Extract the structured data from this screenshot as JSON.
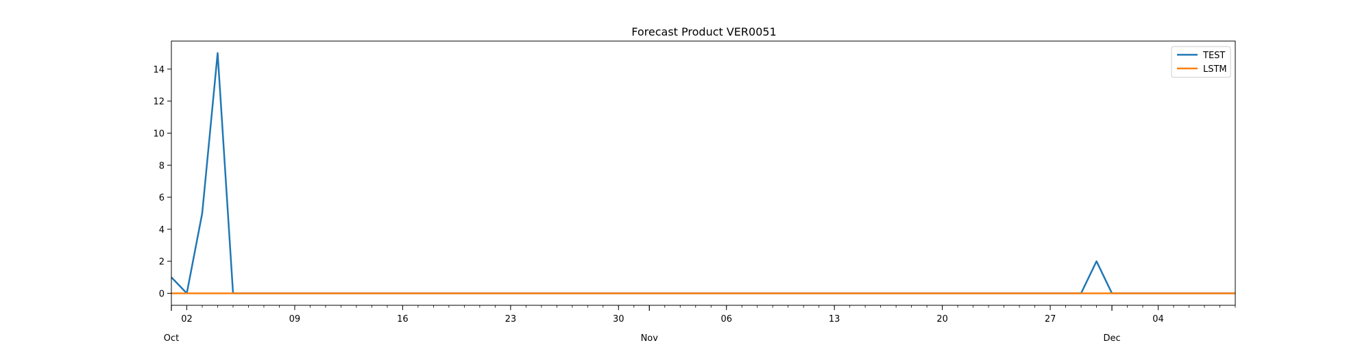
{
  "chart_data": {
    "type": "line",
    "title": "Forecast Product VER0051",
    "xlabel": "",
    "ylabel": "",
    "x_range": [
      "2022-10-01",
      "2022-12-09"
    ],
    "ylim": [
      -0.75,
      15.75
    ],
    "y_ticks": [
      0,
      2,
      4,
      6,
      8,
      10,
      12,
      14
    ],
    "x_tick_labels": [
      {
        "date": "2022-10-02",
        "label": "02"
      },
      {
        "date": "2022-10-09",
        "label": "09"
      },
      {
        "date": "2022-10-16",
        "label": "16"
      },
      {
        "date": "2022-10-23",
        "label": "23"
      },
      {
        "date": "2022-10-30",
        "label": "30"
      },
      {
        "date": "2022-11-06",
        "label": "06"
      },
      {
        "date": "2022-11-13",
        "label": "13"
      },
      {
        "date": "2022-11-20",
        "label": "20"
      },
      {
        "date": "2022-11-27",
        "label": "27"
      },
      {
        "date": "2022-12-04",
        "label": "04"
      }
    ],
    "month_labels": [
      {
        "date": "2022-10-01",
        "label": "Oct"
      },
      {
        "date": "2022-11-01",
        "label": "Nov"
      },
      {
        "date": "2022-12-01",
        "label": "Dec"
      }
    ],
    "grid": false,
    "legend_position": "top-right",
    "series": [
      {
        "name": "TEST",
        "color": "#1f77b4",
        "points": [
          {
            "x": "2022-10-01",
            "y": 1
          },
          {
            "x": "2022-10-02",
            "y": 0
          },
          {
            "x": "2022-10-03",
            "y": 5
          },
          {
            "x": "2022-10-04",
            "y": 15
          },
          {
            "x": "2022-10-05",
            "y": 0
          },
          {
            "x": "2022-11-29",
            "y": 0
          },
          {
            "x": "2022-11-30",
            "y": 2
          },
          {
            "x": "2022-12-01",
            "y": 0
          },
          {
            "x": "2022-12-09",
            "y": 0
          }
        ]
      },
      {
        "name": "LSTM",
        "color": "#ff7f0e",
        "points": [
          {
            "x": "2022-10-01",
            "y": 0
          },
          {
            "x": "2022-12-09",
            "y": 0
          }
        ]
      }
    ]
  }
}
